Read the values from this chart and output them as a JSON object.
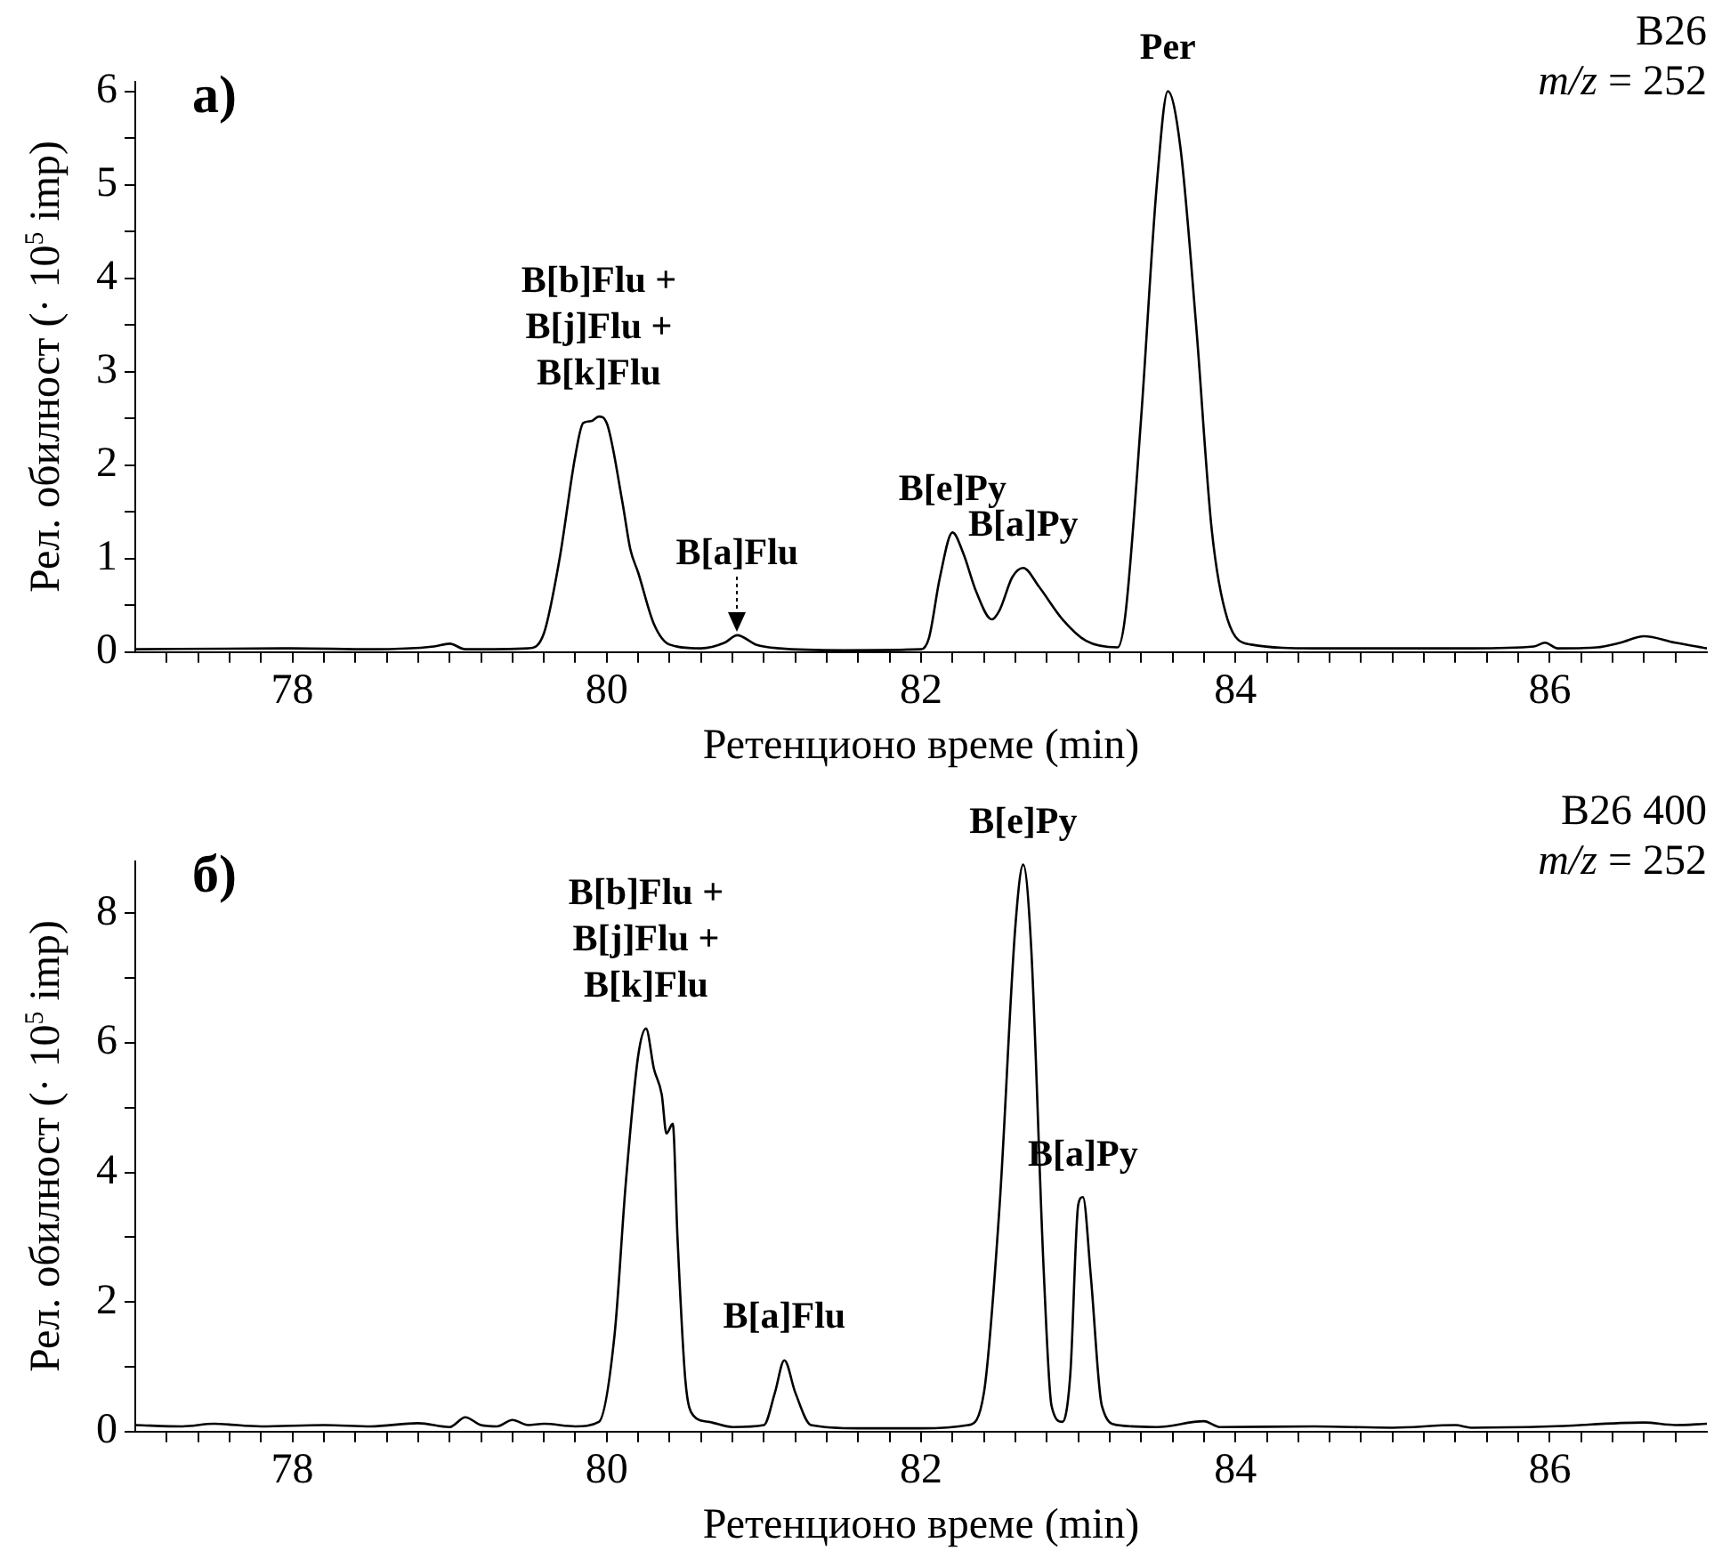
{
  "chart_data": [
    {
      "type": "line",
      "title": "a)",
      "xlabel": "Ретенционо време (min)",
      "ylabel": "Рел. обилност (· 10$^{5}$ imp)",
      "xlim": [
        77,
        87
      ],
      "ylim": [
        0,
        6.1
      ],
      "xticks": [
        {
          "value": 77.2,
          "label": null
        },
        {
          "value": 77.4,
          "label": null
        },
        {
          "value": 77.6,
          "label": null
        },
        {
          "value": 77.8,
          "label": null
        },
        78,
        {
          "value": 78.2,
          "label": null
        },
        {
          "value": 78.4,
          "label": null
        },
        {
          "value": 78.6,
          "label": null
        },
        {
          "value": 78.8,
          "label": null
        },
        {
          "value": 79,
          "label": null
        },
        {
          "value": 79.2,
          "label": null
        },
        {
          "value": 79.4,
          "label": null
        },
        {
          "value": 79.6,
          "label": null
        },
        {
          "value": 79.8,
          "label": null
        },
        80,
        {
          "value": 80.2,
          "label": null
        },
        {
          "value": 80.4,
          "label": null
        },
        {
          "value": 80.6,
          "label": null
        },
        {
          "value": 80.8,
          "label": null
        },
        {
          "value": 81,
          "label": null
        },
        {
          "value": 81.2,
          "label": null
        },
        {
          "value": 81.4,
          "label": null
        },
        {
          "value": 81.6,
          "label": null
        },
        {
          "value": 81.8,
          "label": null
        },
        82,
        {
          "value": 82.2,
          "label": null
        },
        {
          "value": 82.4,
          "label": null
        },
        {
          "value": 82.6,
          "label": null
        },
        {
          "value": 82.8,
          "label": null
        },
        {
          "value": 83,
          "label": null
        },
        {
          "value": 83.2,
          "label": null
        },
        {
          "value": 83.4,
          "label": null
        },
        {
          "value": 83.6,
          "label": null
        },
        {
          "value": 83.8,
          "label": null
        },
        84,
        {
          "value": 84.2,
          "label": null
        },
        {
          "value": 84.4,
          "label": null
        },
        {
          "value": 84.6,
          "label": null
        },
        {
          "value": 84.8,
          "label": null
        },
        {
          "value": 85,
          "label": null
        },
        {
          "value": 85.2,
          "label": null
        },
        {
          "value": 85.4,
          "label": null
        },
        {
          "value": 85.6,
          "label": null
        },
        {
          "value": 85.8,
          "label": null
        },
        86,
        {
          "value": 86.2,
          "label": null
        },
        {
          "value": 86.4,
          "label": null
        },
        {
          "value": 86.6,
          "label": null
        },
        {
          "value": 86.8,
          "label": null
        }
      ],
      "yticks": [
        0,
        {
          "value": 0.5,
          "label": null
        },
        1,
        {
          "value": 1.5,
          "label": null
        },
        2,
        {
          "value": 2.5,
          "label": null
        },
        3,
        {
          "value": 3.5,
          "label": null
        },
        4,
        {
          "value": 4.5,
          "label": null
        },
        5,
        {
          "value": 5.5,
          "label": null
        },
        6
      ],
      "grid": false,
      "legend": false,
      "marker": "none",
      "line_style": "solid",
      "series": [
        {
          "color": "#000000",
          "x": [
            77.0,
            78.0,
            78.5,
            78.9,
            79.0,
            79.1,
            79.5,
            79.6,
            79.7,
            79.8,
            79.85,
            79.9,
            79.95,
            80.0,
            80.1,
            80.15,
            80.2,
            80.3,
            80.4,
            80.6,
            80.75,
            80.83,
            80.95,
            81.1,
            81.5,
            82.0,
            82.05,
            82.12,
            82.2,
            82.27,
            82.35,
            82.45,
            82.5,
            82.58,
            82.65,
            82.75,
            82.9,
            83.05,
            83.25,
            83.3,
            83.4,
            83.5,
            83.57,
            83.65,
            83.75,
            83.85,
            83.95,
            84.1,
            84.5,
            85.0,
            85.5,
            85.9,
            85.97,
            86.05,
            86.3,
            86.45,
            86.6,
            86.8,
            87.0
          ],
          "values": [
            0.03,
            0.04,
            0.03,
            0.06,
            0.09,
            0.03,
            0.04,
            0.2,
            1.0,
            2.1,
            2.45,
            2.47,
            2.52,
            2.45,
            1.6,
            1.1,
            0.85,
            0.3,
            0.08,
            0.04,
            0.1,
            0.18,
            0.08,
            0.04,
            0.02,
            0.03,
            0.15,
            0.8,
            1.28,
            1.05,
            0.65,
            0.35,
            0.45,
            0.8,
            0.9,
            0.7,
            0.35,
            0.12,
            0.05,
            0.4,
            2.5,
            5.0,
            6.0,
            5.4,
            3.5,
            1.3,
            0.35,
            0.08,
            0.04,
            0.04,
            0.04,
            0.06,
            0.1,
            0.04,
            0.05,
            0.1,
            0.17,
            0.1,
            0.04
          ]
        }
      ],
      "annotations": [
        {
          "text": "B[b]Flu +\nB[j]Flu +\nB[k]Flu",
          "x": 79.95,
          "y": 2.52
        },
        {
          "text": "B[a]Flu",
          "x": 80.83,
          "y": 0.18
        },
        {
          "text": "B[e]Py",
          "x": 82.2,
          "y": 1.28
        },
        {
          "text": "B[a]Py",
          "x": 82.65,
          "y": 0.9
        },
        {
          "text": "Per",
          "x": 83.57,
          "y": 6.0
        },
        "B26",
        "m/z = 252"
      ]
    },
    {
      "type": "line",
      "title": "б)",
      "xlabel": "Ретенционо време (min)",
      "ylabel": "Рел. обилност (· 10$^{5}$ imp)",
      "xlim": [
        77,
        87
      ],
      "ylim": [
        0,
        8.8
      ],
      "xticks": [
        {
          "value": 77.2,
          "label": null
        },
        {
          "value": 77.4,
          "label": null
        },
        {
          "value": 77.6,
          "label": null
        },
        {
          "value": 77.8,
          "label": null
        },
        78,
        {
          "value": 78.2,
          "label": null
        },
        {
          "value": 78.4,
          "label": null
        },
        {
          "value": 78.6,
          "label": null
        },
        {
          "value": 78.8,
          "label": null
        },
        {
          "value": 79,
          "label": null
        },
        {
          "value": 79.2,
          "label": null
        },
        {
          "value": 79.4,
          "label": null
        },
        {
          "value": 79.6,
          "label": null
        },
        {
          "value": 79.8,
          "label": null
        },
        80,
        {
          "value": 80.2,
          "label": null
        },
        {
          "value": 80.4,
          "label": null
        },
        {
          "value": 80.6,
          "label": null
        },
        {
          "value": 80.8,
          "label": null
        },
        {
          "value": 81,
          "label": null
        },
        {
          "value": 81.2,
          "label": null
        },
        {
          "value": 81.4,
          "label": null
        },
        {
          "value": 81.6,
          "label": null
        },
        {
          "value": 81.8,
          "label": null
        },
        82,
        {
          "value": 82.2,
          "label": null
        },
        {
          "value": 82.4,
          "label": null
        },
        {
          "value": 82.6,
          "label": null
        },
        {
          "value": 82.8,
          "label": null
        },
        {
          "value": 83,
          "label": null
        },
        {
          "value": 83.2,
          "label": null
        },
        {
          "value": 83.4,
          "label": null
        },
        {
          "value": 83.6,
          "label": null
        },
        {
          "value": 83.8,
          "label": null
        },
        84,
        {
          "value": 84.2,
          "label": null
        },
        {
          "value": 84.4,
          "label": null
        },
        {
          "value": 84.6,
          "label": null
        },
        {
          "value": 84.8,
          "label": null
        },
        {
          "value": 85,
          "label": null
        },
        {
          "value": 85.2,
          "label": null
        },
        {
          "value": 85.4,
          "label": null
        },
        {
          "value": 85.6,
          "label": null
        },
        {
          "value": 85.8,
          "label": null
        },
        86,
        {
          "value": 86.2,
          "label": null
        },
        {
          "value": 86.4,
          "label": null
        },
        {
          "value": 86.6,
          "label": null
        },
        {
          "value": 86.8,
          "label": null
        }
      ],
      "yticks": [
        0,
        {
          "value": 1,
          "label": null
        },
        2,
        {
          "value": 3,
          "label": null
        },
        4,
        {
          "value": 5,
          "label": null
        },
        6,
        {
          "value": 7,
          "label": null
        },
        8
      ],
      "grid": false,
      "legend": false,
      "marker": "none",
      "line_style": "solid",
      "series": [
        {
          "color": "#000000",
          "x": [
            77.0,
            77.3,
            77.5,
            77.8,
            78.2,
            78.5,
            78.8,
            79.0,
            79.1,
            79.2,
            79.3,
            79.4,
            79.5,
            79.6,
            79.8,
            79.95,
            80.05,
            80.12,
            80.2,
            80.25,
            80.3,
            80.35,
            80.38,
            80.42,
            80.45,
            80.5,
            80.55,
            80.65,
            80.8,
            81.0,
            81.07,
            81.13,
            81.2,
            81.3,
            81.6,
            82.0,
            82.3,
            82.4,
            82.5,
            82.6,
            82.65,
            82.7,
            82.78,
            82.83,
            82.9,
            82.95,
            83.0,
            83.03,
            83.08,
            83.15,
            83.25,
            83.5,
            83.8,
            83.9,
            84.5,
            85.0,
            85.4,
            85.5,
            86.0,
            86.6,
            86.8,
            87.0
          ],
          "values": [
            0.1,
            0.08,
            0.12,
            0.08,
            0.1,
            0.08,
            0.13,
            0.07,
            0.22,
            0.1,
            0.08,
            0.18,
            0.1,
            0.12,
            0.08,
            0.15,
            1.5,
            3.8,
            5.8,
            6.22,
            5.6,
            5.2,
            4.6,
            4.75,
            3.0,
            0.8,
            0.25,
            0.15,
            0.07,
            0.1,
            0.6,
            1.1,
            0.6,
            0.1,
            0.05,
            0.05,
            0.1,
            0.6,
            3.5,
            7.8,
            8.75,
            7.5,
            2.5,
            0.4,
            0.15,
            0.9,
            3.5,
            3.62,
            2.4,
            0.4,
            0.1,
            0.07,
            0.16,
            0.07,
            0.08,
            0.06,
            0.1,
            0.06,
            0.08,
            0.14,
            0.1,
            0.12
          ]
        }
      ],
      "annotations": [
        {
          "text": "B[b]Flu +\nB[j]Flu +\nB[k]Flu",
          "x": 80.25,
          "y": 6.22
        },
        {
          "text": "B[a]Flu",
          "x": 81.13,
          "y": 1.1
        },
        {
          "text": "B[e]Py",
          "x": 82.65,
          "y": 8.75
        },
        {
          "text": "B[a]Py",
          "x": 83.03,
          "y": 3.62
        },
        "B26 400",
        "m/z = 252"
      ]
    }
  ]
}
